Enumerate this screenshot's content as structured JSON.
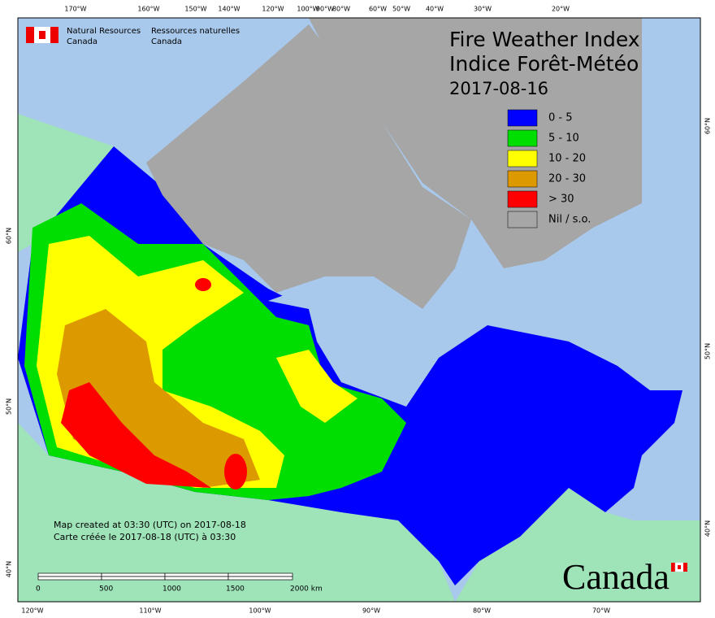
{
  "header": {
    "org_en": [
      "Natural Resources",
      "Canada"
    ],
    "org_fr": [
      "Ressources naturelles",
      "Canada"
    ]
  },
  "title": [
    "Fire Weather Index",
    "Indice Forêt-Météo"
  ],
  "date": "2017-08-16",
  "legend": [
    {
      "label": "0 - 5",
      "color": "#0000ff"
    },
    {
      "label": "5 - 10",
      "color": "#00dd00"
    },
    {
      "label": "10 - 20",
      "color": "#ffff00"
    },
    {
      "label": "20 - 30",
      "color": "#dd9900"
    },
    {
      "label": "> 30",
      "color": "#ff0000"
    },
    {
      "label": "Nil / s.o.",
      "color": "#a6a6a6"
    }
  ],
  "footer": [
    "Map created at 03:30 (UTC) on 2017-08-18",
    "Carte créée le 2017-08-18 (UTC) à 03:30"
  ],
  "scale_bar": {
    "labels": [
      "0",
      "500",
      "1000",
      "1500",
      "2000 km"
    ]
  },
  "graticule": {
    "top": [
      "170°W",
      "160°W",
      "150°W",
      "140°W",
      "120°W",
      "100°W",
      "90°W",
      "80°W",
      "60°W",
      "50°W",
      "40°W",
      "30°W",
      "20°W"
    ],
    "bottom": [
      "120°W",
      "110°W",
      "100°W",
      "90°W",
      "80°W",
      "70°W"
    ],
    "left": [
      "60°N",
      "50°N",
      "40°N"
    ],
    "right": [
      "60°N",
      "50°N",
      "40°N"
    ]
  },
  "wordmark": "Canada"
}
